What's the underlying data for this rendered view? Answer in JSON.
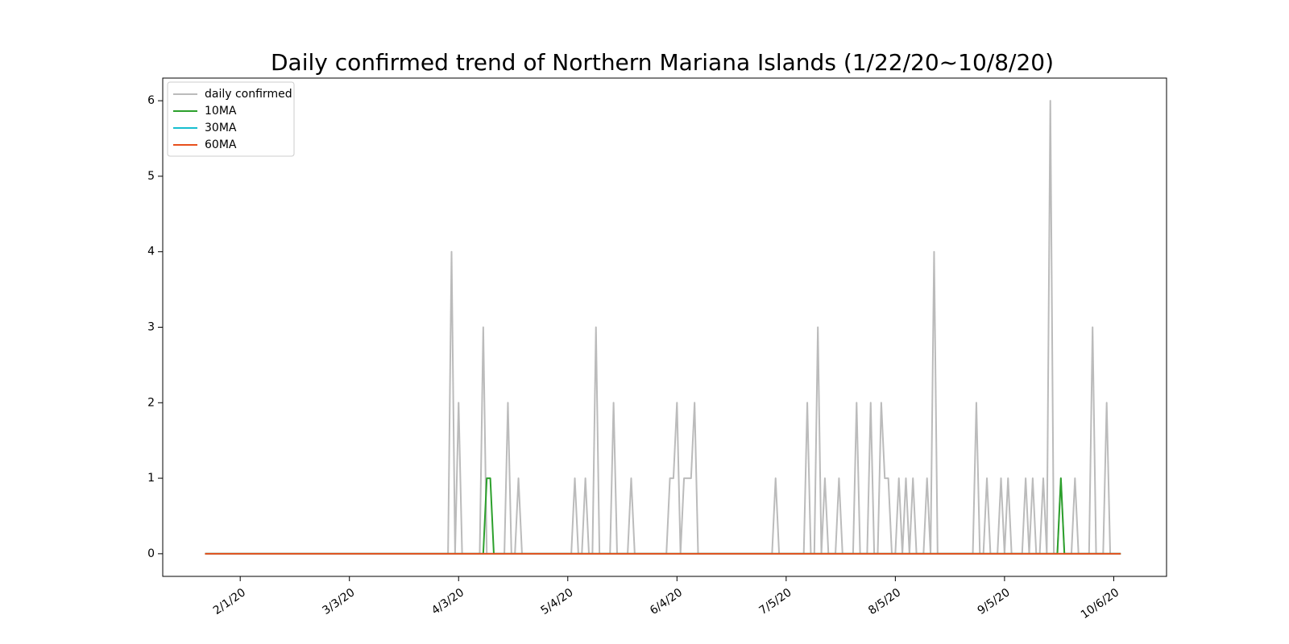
{
  "chart_data": {
    "type": "line",
    "title": "Daily confirmed trend of Northern Mariana Islands (1/22/20~10/8/20)",
    "xlabel": "",
    "ylabel": "",
    "x_start": "2020-01-22",
    "x_end": "2020-10-08",
    "xlim": [
      "2020-01-10",
      "2020-10-21"
    ],
    "ylim": [
      -0.3,
      6.3
    ],
    "xticks": [
      {
        "date": "2020-02-01",
        "label": "2/1/20"
      },
      {
        "date": "2020-03-03",
        "label": "3/3/20"
      },
      {
        "date": "2020-04-03",
        "label": "4/3/20"
      },
      {
        "date": "2020-05-04",
        "label": "5/4/20"
      },
      {
        "date": "2020-06-04",
        "label": "6/4/20"
      },
      {
        "date": "2020-07-05",
        "label": "7/5/20"
      },
      {
        "date": "2020-08-05",
        "label": "8/5/20"
      },
      {
        "date": "2020-09-05",
        "label": "9/5/20"
      },
      {
        "date": "2020-10-06",
        "label": "10/6/20"
      }
    ],
    "yticks": [
      0,
      1,
      2,
      3,
      4,
      5,
      6
    ],
    "grid": false,
    "legend_position": "top-left",
    "series": [
      {
        "name": "daily confirmed",
        "color": "#bbbbbb",
        "points": [
          [
            "2020-03-30",
            0
          ],
          [
            "2020-04-01",
            4
          ],
          [
            "2020-04-02",
            0
          ],
          [
            "2020-04-03",
            2
          ],
          [
            "2020-04-04",
            0
          ],
          [
            "2020-04-08",
            0
          ],
          [
            "2020-04-10",
            3
          ],
          [
            "2020-04-11",
            0
          ],
          [
            "2020-04-15",
            0
          ],
          [
            "2020-04-17",
            2
          ],
          [
            "2020-04-18",
            0
          ],
          [
            "2020-04-19",
            0
          ],
          [
            "2020-04-20",
            1
          ],
          [
            "2020-04-21",
            0
          ],
          [
            "2020-05-05",
            0
          ],
          [
            "2020-05-06",
            1
          ],
          [
            "2020-05-07",
            0
          ],
          [
            "2020-05-09",
            1
          ],
          [
            "2020-05-10",
            0
          ],
          [
            "2020-05-12",
            3
          ],
          [
            "2020-05-13",
            0
          ],
          [
            "2020-05-16",
            0
          ],
          [
            "2020-05-17",
            2
          ],
          [
            "2020-05-18",
            0
          ],
          [
            "2020-05-21",
            0
          ],
          [
            "2020-05-22",
            1
          ],
          [
            "2020-05-23",
            0
          ],
          [
            "2020-06-01",
            0
          ],
          [
            "2020-06-02",
            1
          ],
          [
            "2020-06-03",
            1
          ],
          [
            "2020-06-04",
            2
          ],
          [
            "2020-06-05",
            0
          ],
          [
            "2020-06-06",
            1
          ],
          [
            "2020-06-07",
            1
          ],
          [
            "2020-06-08",
            1
          ],
          [
            "2020-06-09",
            2
          ],
          [
            "2020-06-10",
            0
          ],
          [
            "2020-07-01",
            0
          ],
          [
            "2020-07-02",
            1
          ],
          [
            "2020-07-03",
            0
          ],
          [
            "2020-07-10",
            0
          ],
          [
            "2020-07-11",
            2
          ],
          [
            "2020-07-12",
            0
          ],
          [
            "2020-07-14",
            3
          ],
          [
            "2020-07-15",
            0
          ],
          [
            "2020-07-16",
            1
          ],
          [
            "2020-07-17",
            0
          ],
          [
            "2020-07-19",
            0
          ],
          [
            "2020-07-20",
            1
          ],
          [
            "2020-07-21",
            0
          ],
          [
            "2020-07-24",
            0
          ],
          [
            "2020-07-25",
            2
          ],
          [
            "2020-07-26",
            0
          ],
          [
            "2020-07-28",
            0
          ],
          [
            "2020-07-29",
            2
          ],
          [
            "2020-07-30",
            0
          ],
          [
            "2020-07-31",
            0
          ],
          [
            "2020-08-01",
            2
          ],
          [
            "2020-08-02",
            1
          ],
          [
            "2020-08-03",
            1
          ],
          [
            "2020-08-04",
            0
          ],
          [
            "2020-08-05",
            0
          ],
          [
            "2020-08-06",
            1
          ],
          [
            "2020-08-07",
            0
          ],
          [
            "2020-08-08",
            1
          ],
          [
            "2020-08-09",
            0
          ],
          [
            "2020-08-10",
            1
          ],
          [
            "2020-08-11",
            0
          ],
          [
            "2020-08-13",
            0
          ],
          [
            "2020-08-14",
            1
          ],
          [
            "2020-08-15",
            0
          ],
          [
            "2020-08-16",
            4
          ],
          [
            "2020-08-17",
            0
          ],
          [
            "2020-08-27",
            0
          ],
          [
            "2020-08-28",
            2
          ],
          [
            "2020-08-29",
            0
          ],
          [
            "2020-08-30",
            0
          ],
          [
            "2020-08-31",
            1
          ],
          [
            "2020-09-01",
            0
          ],
          [
            "2020-09-03",
            0
          ],
          [
            "2020-09-04",
            1
          ],
          [
            "2020-09-05",
            0
          ],
          [
            "2020-09-06",
            1
          ],
          [
            "2020-09-07",
            0
          ],
          [
            "2020-09-10",
            0
          ],
          [
            "2020-09-11",
            1
          ],
          [
            "2020-09-12",
            0
          ],
          [
            "2020-09-13",
            1
          ],
          [
            "2020-09-14",
            0
          ],
          [
            "2020-09-15",
            0
          ],
          [
            "2020-09-16",
            1
          ],
          [
            "2020-09-17",
            0
          ],
          [
            "2020-09-18",
            6
          ],
          [
            "2020-09-19",
            0
          ],
          [
            "2020-09-20",
            0
          ],
          [
            "2020-09-21",
            1
          ],
          [
            "2020-09-22",
            0
          ],
          [
            "2020-09-23",
            0
          ],
          [
            "2020-09-24",
            0
          ],
          [
            "2020-09-25",
            1
          ],
          [
            "2020-09-26",
            0
          ],
          [
            "2020-09-29",
            0
          ],
          [
            "2020-09-30",
            3
          ],
          [
            "2020-10-01",
            0
          ],
          [
            "2020-10-03",
            0
          ],
          [
            "2020-10-04",
            2
          ],
          [
            "2020-10-05",
            0
          ],
          [
            "2020-10-08",
            0
          ]
        ]
      },
      {
        "name": "10MA",
        "color": "#2ca02c",
        "points": [
          [
            "2020-04-10",
            0
          ],
          [
            "2020-04-11",
            1
          ],
          [
            "2020-04-12",
            1
          ],
          [
            "2020-04-13",
            0
          ],
          [
            "2020-09-20",
            0
          ],
          [
            "2020-09-21",
            1
          ],
          [
            "2020-09-22",
            0
          ],
          [
            "2020-10-08",
            0
          ]
        ]
      },
      {
        "name": "30MA",
        "color": "#17becf",
        "points": [
          [
            "2020-10-08",
            0
          ]
        ]
      },
      {
        "name": "60MA",
        "color": "#e8501c",
        "points": [
          [
            "2020-10-08",
            0
          ]
        ]
      }
    ]
  }
}
